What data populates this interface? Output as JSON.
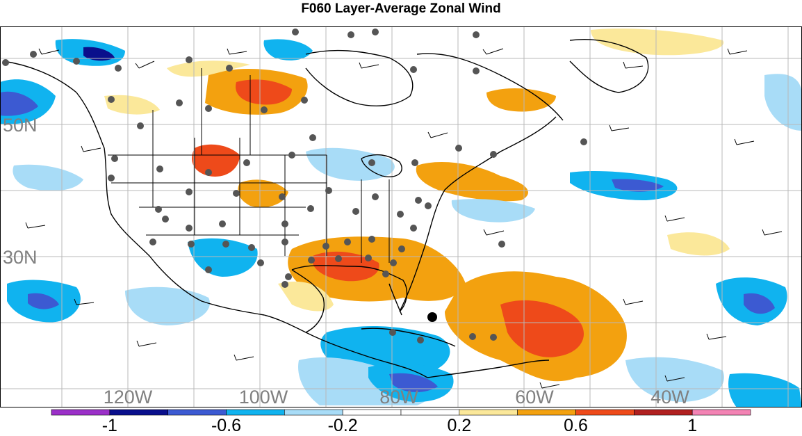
{
  "title": "F060 Layer-Average Zonal Wind",
  "map": {
    "lat_labels": [
      {
        "text": "50N",
        "lat": 50
      },
      {
        "text": "30N",
        "lat": 30
      }
    ],
    "lon_labels": [
      {
        "text": "120W",
        "lon": -120
      },
      {
        "text": "100W",
        "lon": -100
      },
      {
        "text": "80W",
        "lon": -80
      },
      {
        "text": "60W",
        "lon": -60
      },
      {
        "text": "40W",
        "lon": -40
      }
    ]
  },
  "colorbar": {
    "colors": [
      "#9b30c8",
      "#0a0f8c",
      "#3c5ad2",
      "#10b3ef",
      "#a8dcf7",
      "#ffffff",
      "#ffffff",
      "#fbe89a",
      "#f3a10f",
      "#ee4a1a",
      "#b02020",
      "#f383b4"
    ],
    "labels": [
      "-1",
      "-0.6",
      "-0.2",
      "0.2",
      "0.6",
      "1"
    ]
  }
}
